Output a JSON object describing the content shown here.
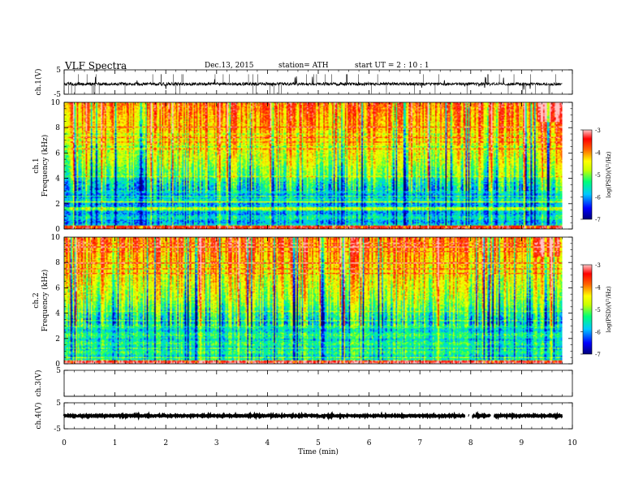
{
  "header": {
    "title": "VLF  Spectra",
    "date": "Dec.13, 2015",
    "station": "station= ATH",
    "start": "start  UT  =   2  : 10 : 1"
  },
  "colors": {
    "colormap": [
      "#00007a",
      "#0000ff",
      "#00c8ff",
      "#00ff78",
      "#c8ff00",
      "#ffff00",
      "#ff6400",
      "#ff0000",
      "#ffc8c8"
    ],
    "trace": "#000000"
  },
  "chart_data": [
    {
      "type": "line",
      "panel": "ch1-waveform",
      "ylabel": "ch.1(V)",
      "ylim": [
        -5,
        5
      ],
      "yticks": [
        "5",
        "-5"
      ],
      "series": [
        {
          "values_level_approx": -0.8,
          "noise_amplitude_approx": 0.6
        }
      ]
    },
    {
      "type": "heatmap",
      "panel": "ch1-spectrogram",
      "ylabel_line1": "ch.1",
      "ylabel_line2": "Frequency  (kHz)",
      "ylim": [
        0,
        10
      ],
      "yticks": [
        "0",
        "2",
        "4",
        "6",
        "8",
        "10"
      ],
      "colorbar": {
        "label": "log(PSD)(V²/Hz)",
        "range": [
          -7,
          -3
        ],
        "ticks": [
          "-3",
          "-4",
          "-5",
          "-6",
          "-7"
        ]
      },
      "seed": 11
    },
    {
      "type": "heatmap",
      "panel": "ch2-spectrogram",
      "ylabel_line1": "ch.2",
      "ylabel_line2": "Frequency  (kHz)",
      "ylim": [
        0,
        10
      ],
      "yticks": [
        "0",
        "2",
        "4",
        "6",
        "8",
        "10"
      ],
      "colorbar": {
        "label": "log(PSD)(V²/Hz)",
        "range": [
          -7,
          -3
        ],
        "ticks": [
          "-3",
          "-4",
          "-5",
          "-6",
          "-7"
        ]
      },
      "seed": 29
    },
    {
      "type": "line",
      "panel": "ch3-waveform",
      "ylabel": "ch.3(V)",
      "ylim": [
        -5,
        5
      ],
      "yticks": [
        "5"
      ],
      "series": [
        {
          "values_level_approx": -5,
          "noise_amplitude_approx": 0
        }
      ]
    },
    {
      "type": "line",
      "panel": "ch4-waveform",
      "ylabel": "ch.4(V)",
      "ylim": [
        -5,
        5
      ],
      "yticks": [
        "5",
        "-5"
      ],
      "series": [
        {
          "values_level_approx": 0,
          "noise_amplitude_approx": 0.25,
          "gaps_min": [
            7.92,
            8.0,
            8.42
          ]
        }
      ]
    }
  ],
  "xaxis": {
    "label": "Time  (min)",
    "ticks": [
      "0",
      "1",
      "2",
      "3",
      "4",
      "5",
      "6",
      "7",
      "8",
      "9",
      "10"
    ],
    "xlim": [
      0,
      10
    ],
    "data_end": 9.8
  }
}
